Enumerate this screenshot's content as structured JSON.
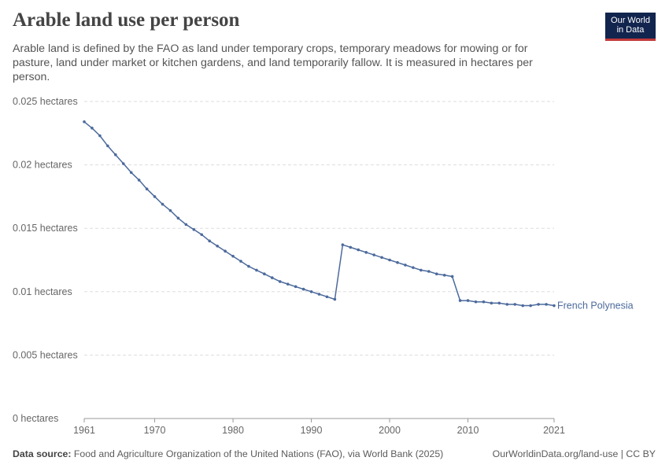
{
  "header": {
    "title": "Arable land use per person",
    "subtitle": "Arable land is defined by the FAO as land under temporary crops, temporary meadows for mowing or for pasture, land under market or kitchen gardens, and land temporarily fallow. It is measured in hectares per person."
  },
  "logo": {
    "line1": "Our World",
    "line2": "in Data"
  },
  "footer": {
    "source_label": "Data source:",
    "source_text": "Food and Agriculture Organization of the United Nations (FAO), via World Bank (2025)",
    "right_text": "OurWorldinData.org/land-use | CC BY"
  },
  "colors": {
    "series": "#4c6a9c",
    "grid": "#dddddd",
    "axis": "#666666",
    "text": "#555555"
  },
  "chart_data": {
    "type": "line",
    "title": "Arable land use per person",
    "ylim": [
      0,
      0.025
    ],
    "xlim": [
      1961,
      2021
    ],
    "y_ticks": [
      0,
      0.005,
      0.01,
      0.015,
      0.02,
      0.025
    ],
    "y_tick_labels": [
      "0 hectares",
      "0.005 hectares",
      "0.01 hectares",
      "0.015 hectares",
      "0.02 hectares",
      "0.025 hectares"
    ],
    "x_ticks": [
      1961,
      1970,
      1980,
      1990,
      2000,
      2010,
      2021
    ],
    "x_tick_labels": [
      "1961",
      "1970",
      "1980",
      "1990",
      "2000",
      "2010",
      "2021"
    ],
    "grid": "horizontal-dashed",
    "series": [
      {
        "name": "French Polynesia",
        "color": "#4c6a9c",
        "x": [
          1961,
          1962,
          1963,
          1964,
          1965,
          1966,
          1967,
          1968,
          1969,
          1970,
          1971,
          1972,
          1973,
          1974,
          1975,
          1976,
          1977,
          1978,
          1979,
          1980,
          1981,
          1982,
          1983,
          1984,
          1985,
          1986,
          1987,
          1988,
          1989,
          1990,
          1991,
          1992,
          1993,
          1994,
          1995,
          1996,
          1997,
          1998,
          1999,
          2000,
          2001,
          2002,
          2003,
          2004,
          2005,
          2006,
          2007,
          2008,
          2009,
          2010,
          2011,
          2012,
          2013,
          2014,
          2015,
          2016,
          2017,
          2018,
          2019,
          2020,
          2021
        ],
        "y": [
          0.0234,
          0.0229,
          0.0223,
          0.0215,
          0.0208,
          0.0201,
          0.0194,
          0.0188,
          0.0181,
          0.0175,
          0.0169,
          0.0164,
          0.0158,
          0.0153,
          0.0149,
          0.0145,
          0.014,
          0.0136,
          0.0132,
          0.0128,
          0.0124,
          0.012,
          0.0117,
          0.0114,
          0.0111,
          0.0108,
          0.0106,
          0.0104,
          0.0102,
          0.01,
          0.0098,
          0.0096,
          0.0094,
          0.0137,
          0.0135,
          0.0133,
          0.0131,
          0.0129,
          0.0127,
          0.0125,
          0.0123,
          0.0121,
          0.0119,
          0.0117,
          0.0116,
          0.0114,
          0.0113,
          0.0112,
          0.0093,
          0.0093,
          0.0092,
          0.0092,
          0.0091,
          0.0091,
          0.009,
          0.009,
          0.0089,
          0.0089,
          0.009,
          0.009,
          0.0089
        ]
      }
    ]
  }
}
